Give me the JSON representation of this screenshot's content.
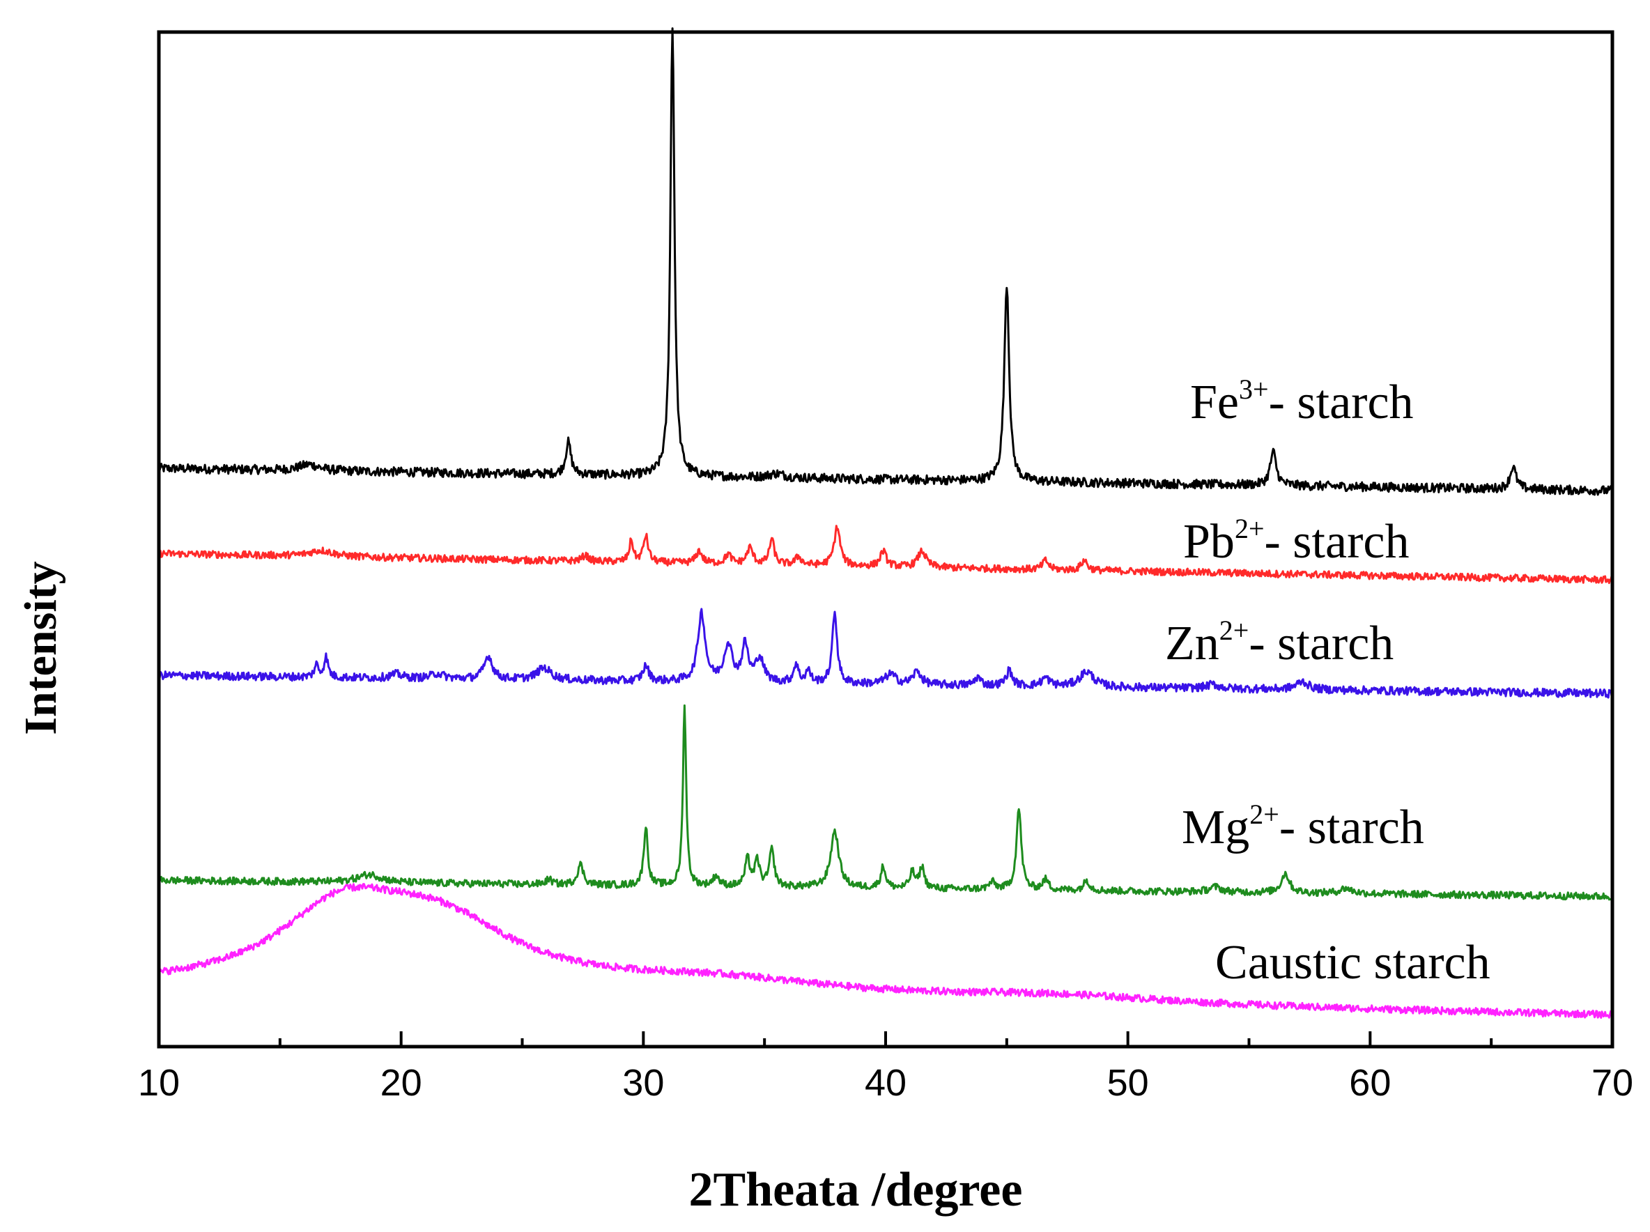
{
  "chart_data": {
    "type": "line",
    "title": "",
    "xlabel": "2Theata /degree",
    "ylabel": "Intensity",
    "xlim": [
      10,
      70
    ],
    "ylim": [
      0,
      100
    ],
    "xticks": [
      10,
      20,
      30,
      40,
      50,
      60,
      70
    ],
    "xtick_labels": [
      "10",
      "20",
      "30",
      "40",
      "50",
      "60",
      "70"
    ],
    "yticks_shown": false,
    "grid": false,
    "series": [
      {
        "id": "fe",
        "name": "Fe3+- starch",
        "label_main": "Fe",
        "label_sup": "3+",
        "label_rest": "- starch",
        "color": "#000000",
        "baseline_start": 57.0,
        "baseline_end": 54.8,
        "noise": 0.45,
        "peaks": [
          {
            "x": 16.2,
            "h": 0.6,
            "w": 0.5
          },
          {
            "x": 26.9,
            "h": 3.2,
            "w": 0.13
          },
          {
            "x": 31.2,
            "h": 44.5,
            "w": 0.1
          },
          {
            "x": 35.5,
            "h": 0.4,
            "w": 0.4
          },
          {
            "x": 45.0,
            "h": 19.5,
            "w": 0.12
          },
          {
            "x": 56.0,
            "h": 3.3,
            "w": 0.15
          },
          {
            "x": 65.9,
            "h": 2.2,
            "w": 0.15
          }
        ]
      },
      {
        "id": "pb",
        "name": "Pb2+- starch",
        "label_main": "Pb",
        "label_sup": "2+",
        "label_rest": "- starch",
        "color": "#ff2a2a",
        "baseline_start": 48.6,
        "baseline_end": 46.0,
        "noise": 0.35,
        "peaks": [
          {
            "x": 16.7,
            "h": 0.6,
            "w": 0.6
          },
          {
            "x": 27.6,
            "h": 0.6,
            "w": 0.15
          },
          {
            "x": 29.5,
            "h": 2.1,
            "w": 0.1
          },
          {
            "x": 30.1,
            "h": 2.6,
            "w": 0.12
          },
          {
            "x": 32.3,
            "h": 1.2,
            "w": 0.15
          },
          {
            "x": 33.5,
            "h": 0.9,
            "w": 0.15
          },
          {
            "x": 34.4,
            "h": 1.6,
            "w": 0.15
          },
          {
            "x": 35.3,
            "h": 2.5,
            "w": 0.12
          },
          {
            "x": 36.4,
            "h": 0.8,
            "w": 0.15
          },
          {
            "x": 38.0,
            "h": 3.8,
            "w": 0.15
          },
          {
            "x": 39.9,
            "h": 1.5,
            "w": 0.15
          },
          {
            "x": 41.5,
            "h": 1.6,
            "w": 0.2
          },
          {
            "x": 46.6,
            "h": 0.9,
            "w": 0.15
          },
          {
            "x": 48.2,
            "h": 1.0,
            "w": 0.15
          }
        ]
      },
      {
        "id": "zn",
        "name": "Zn2+- starch",
        "label_main": "Zn",
        "label_sup": "2+",
        "label_rest": "- starch",
        "color": "#3a12e8",
        "baseline_start": 36.6,
        "baseline_end": 34.8,
        "noise": 0.4,
        "peaks": [
          {
            "x": 16.5,
            "h": 1.2,
            "w": 0.1
          },
          {
            "x": 16.9,
            "h": 2.0,
            "w": 0.1
          },
          {
            "x": 19.8,
            "h": 0.4,
            "w": 0.3
          },
          {
            "x": 21.5,
            "h": 0.5,
            "w": 0.3
          },
          {
            "x": 23.6,
            "h": 2.3,
            "w": 0.2
          },
          {
            "x": 25.9,
            "h": 1.2,
            "w": 0.35
          },
          {
            "x": 30.1,
            "h": 1.5,
            "w": 0.15
          },
          {
            "x": 32.4,
            "h": 6.8,
            "w": 0.18
          },
          {
            "x": 33.5,
            "h": 3.7,
            "w": 0.2
          },
          {
            "x": 34.2,
            "h": 3.6,
            "w": 0.15
          },
          {
            "x": 34.8,
            "h": 2.4,
            "w": 0.2
          },
          {
            "x": 36.3,
            "h": 1.8,
            "w": 0.12
          },
          {
            "x": 36.8,
            "h": 1.2,
            "w": 0.12
          },
          {
            "x": 37.9,
            "h": 7.0,
            "w": 0.12
          },
          {
            "x": 40.2,
            "h": 1.0,
            "w": 0.25
          },
          {
            "x": 41.3,
            "h": 1.3,
            "w": 0.2
          },
          {
            "x": 43.8,
            "h": 0.8,
            "w": 0.15
          },
          {
            "x": 45.1,
            "h": 1.5,
            "w": 0.15
          },
          {
            "x": 46.6,
            "h": 0.8,
            "w": 0.2
          },
          {
            "x": 48.3,
            "h": 1.5,
            "w": 0.35
          },
          {
            "x": 53.5,
            "h": 0.4,
            "w": 0.3
          },
          {
            "x": 57.2,
            "h": 0.8,
            "w": 0.3
          }
        ]
      },
      {
        "id": "mg",
        "name": "Mg2+- starch",
        "label_main": "Mg",
        "label_sup": "2+",
        "label_rest": "- starch",
        "color": "#1e8c1e",
        "baseline_start": 16.4,
        "baseline_end": 14.8,
        "noise": 0.35,
        "peaks": [
          {
            "x": 18.7,
            "h": 0.8,
            "w": 0.6
          },
          {
            "x": 26.1,
            "h": 0.5,
            "w": 0.15
          },
          {
            "x": 27.4,
            "h": 2.0,
            "w": 0.15
          },
          {
            "x": 30.1,
            "h": 5.8,
            "w": 0.1
          },
          {
            "x": 31.7,
            "h": 17.8,
            "w": 0.08
          },
          {
            "x": 33.0,
            "h": 1.0,
            "w": 0.15
          },
          {
            "x": 34.3,
            "h": 2.7,
            "w": 0.12
          },
          {
            "x": 34.7,
            "h": 2.5,
            "w": 0.12
          },
          {
            "x": 35.3,
            "h": 3.6,
            "w": 0.12
          },
          {
            "x": 37.9,
            "h": 5.6,
            "w": 0.2
          },
          {
            "x": 39.9,
            "h": 2.1,
            "w": 0.12
          },
          {
            "x": 41.1,
            "h": 1.6,
            "w": 0.12
          },
          {
            "x": 41.5,
            "h": 2.1,
            "w": 0.12
          },
          {
            "x": 44.4,
            "h": 0.7,
            "w": 0.15
          },
          {
            "x": 45.5,
            "h": 8.0,
            "w": 0.12
          },
          {
            "x": 46.6,
            "h": 1.0,
            "w": 0.15
          },
          {
            "x": 48.3,
            "h": 1.0,
            "w": 0.15
          },
          {
            "x": 53.6,
            "h": 0.5,
            "w": 0.3
          },
          {
            "x": 56.5,
            "h": 1.9,
            "w": 0.2
          },
          {
            "x": 59.0,
            "h": 0.5,
            "w": 0.3
          }
        ]
      },
      {
        "id": "caustic",
        "name": "Caustic starch",
        "label_main": "Caustic starch",
        "label_sup": "",
        "label_rest": "",
        "color": "#ff22ff",
        "baseline_start": 5.5,
        "baseline_end": 3.0,
        "noise": 0.35,
        "peaks": [
          {
            "x": 17.5,
            "h": 6.8,
            "w": 3.2
          },
          {
            "x": 21.5,
            "h": 6.4,
            "w": 4.0
          },
          {
            "x": 33.0,
            "h": 1.6,
            "w": 6.0
          },
          {
            "x": 47.0,
            "h": 0.8,
            "w": 6.0
          }
        ]
      }
    ]
  }
}
